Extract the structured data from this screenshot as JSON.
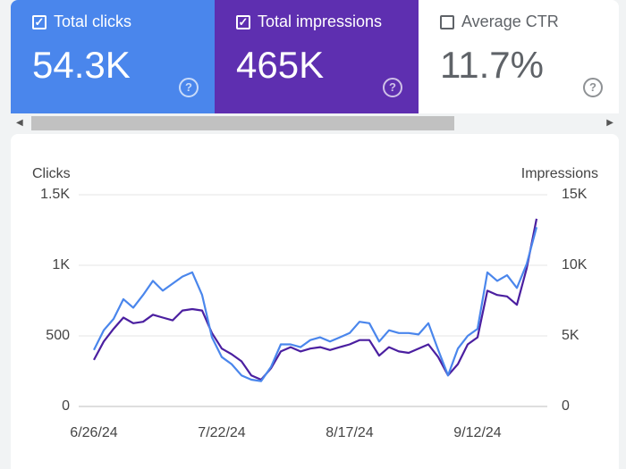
{
  "cards": [
    {
      "label": "Total clicks",
      "value": "54.3K"
    },
    {
      "label": "Total impressions",
      "value": "465K"
    },
    {
      "label": "Average CTR",
      "value": "11.7%"
    }
  ],
  "chart_data": {
    "type": "line",
    "y_label": "Clicks",
    "y2_label": "Impressions",
    "categories": [
      "6/26/24",
      null,
      null,
      null,
      null,
      null,
      null,
      null,
      null,
      null,
      null,
      null,
      null,
      "7/22/24",
      null,
      null,
      null,
      null,
      null,
      null,
      null,
      null,
      null,
      null,
      null,
      null,
      "8/17/24",
      null,
      null,
      null,
      null,
      null,
      null,
      null,
      null,
      null,
      null,
      null,
      null,
      "9/12/24",
      null,
      null,
      null,
      null,
      null,
      null
    ],
    "series": [
      {
        "name": "Clicks",
        "color": "#4a86ec",
        "values": [
          400,
          540,
          620,
          760,
          700,
          790,
          890,
          820,
          870,
          920,
          950,
          790,
          490,
          350,
          300,
          220,
          190,
          180,
          280,
          440,
          440,
          420,
          470,
          490,
          460,
          490,
          520,
          600,
          590,
          460,
          540,
          520,
          520,
          510,
          590,
          400,
          220,
          410,
          500,
          550,
          950,
          890,
          930,
          840,
          1010,
          1270
        ]
      },
      {
        "name": "Impressions",
        "color": "#4b1fa0",
        "axis": "y2",
        "values": [
          3300,
          4600,
          5500,
          6300,
          5900,
          6000,
          6500,
          6300,
          6100,
          6800,
          6900,
          6800,
          5200,
          4100,
          3700,
          3200,
          2200,
          1900,
          2700,
          3900,
          4200,
          3900,
          4100,
          4200,
          4000,
          4200,
          4400,
          4700,
          4700,
          3600,
          4200,
          3900,
          3800,
          4100,
          4400,
          3500,
          2200,
          3000,
          4400,
          4900,
          8200,
          7900,
          7800,
          7200,
          9800,
          13300
        ]
      }
    ],
    "ylim": [
      0,
      1500
    ],
    "yticks": [
      0,
      500,
      {
        "value": 1000,
        "label": "1K"
      },
      {
        "value": 1500,
        "label": "1.5K"
      }
    ],
    "y2lim": [
      0,
      15000
    ],
    "y2ticks": [
      0,
      {
        "value": 5000,
        "label": "5K"
      },
      {
        "value": 10000,
        "label": "10K"
      },
      {
        "value": 15000,
        "label": "15K"
      }
    ],
    "grid": true
  }
}
